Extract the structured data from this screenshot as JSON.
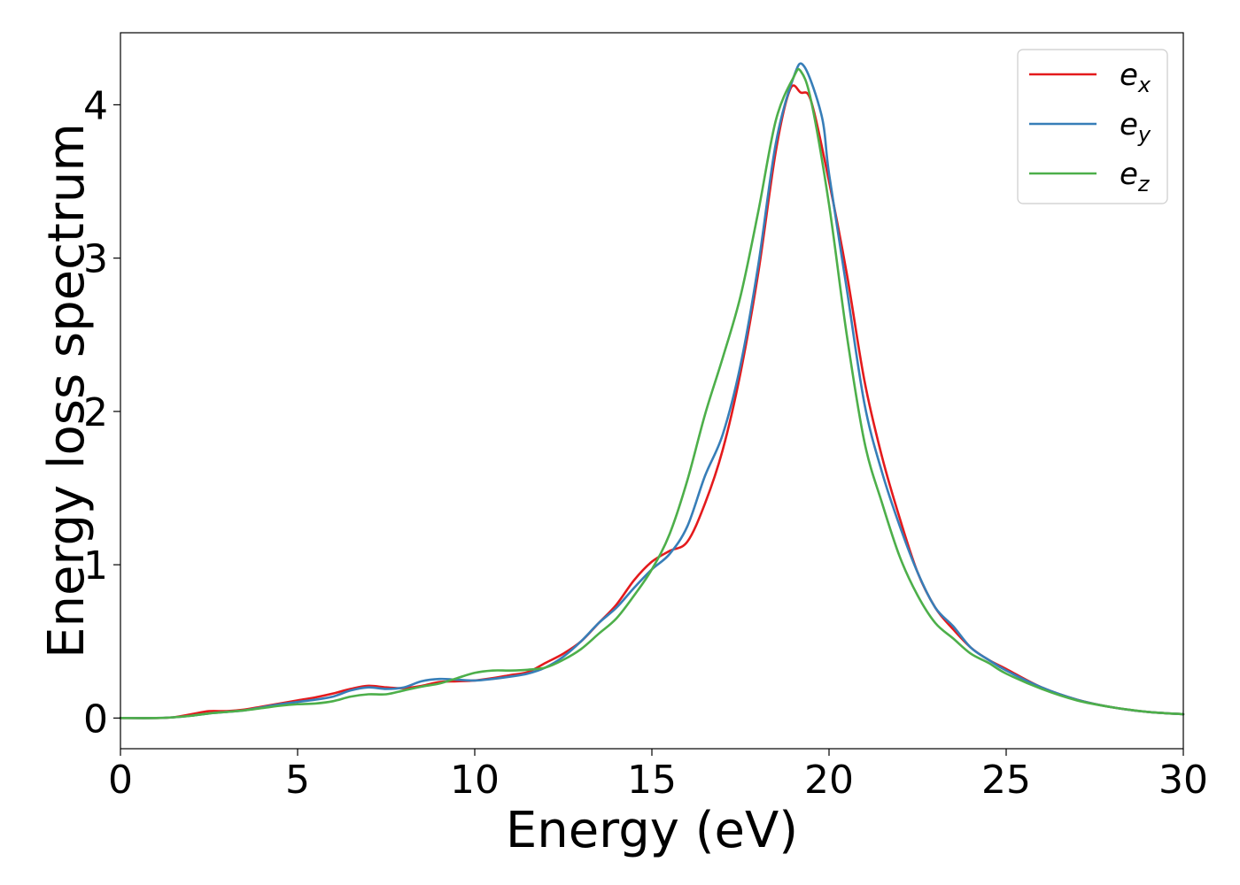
{
  "chart_data": {
    "type": "line",
    "title": "",
    "xlabel": "Energy (eV)",
    "ylabel": "Energy loss spectrum",
    "xlim": [
      0,
      30
    ],
    "ylim": [
      -0.2,
      4.47
    ],
    "x_ticks": [
      "0",
      "5",
      "10",
      "15",
      "20",
      "25",
      "30"
    ],
    "y_ticks": [
      "0",
      "1",
      "2",
      "3",
      "4"
    ],
    "grid": false,
    "legend_position": "top-right",
    "series": [
      {
        "name": "ex",
        "legend_base": "e",
        "legend_sub": "x",
        "color": "#e41a1c",
        "points": [
          [
            0,
            0
          ],
          [
            1,
            0
          ],
          [
            1.5,
            0.005
          ],
          [
            2,
            0.025
          ],
          [
            2.5,
            0.045
          ],
          [
            3,
            0.045
          ],
          [
            3.5,
            0.055
          ],
          [
            4,
            0.075
          ],
          [
            4.5,
            0.095
          ],
          [
            5,
            0.115
          ],
          [
            5.5,
            0.135
          ],
          [
            6,
            0.16
          ],
          [
            6.5,
            0.19
          ],
          [
            7,
            0.21
          ],
          [
            7.5,
            0.2
          ],
          [
            8,
            0.195
          ],
          [
            8.5,
            0.21
          ],
          [
            9,
            0.235
          ],
          [
            9.5,
            0.24
          ],
          [
            10,
            0.245
          ],
          [
            10.5,
            0.26
          ],
          [
            11,
            0.28
          ],
          [
            11.5,
            0.3
          ],
          [
            12,
            0.36
          ],
          [
            12.5,
            0.42
          ],
          [
            13,
            0.5
          ],
          [
            13.5,
            0.62
          ],
          [
            14,
            0.74
          ],
          [
            14.5,
            0.9
          ],
          [
            15,
            1.02
          ],
          [
            15.5,
            1.09
          ],
          [
            16,
            1.15
          ],
          [
            16.5,
            1.4
          ],
          [
            17,
            1.75
          ],
          [
            17.5,
            2.25
          ],
          [
            18,
            2.9
          ],
          [
            18.5,
            3.7
          ],
          [
            18.9,
            4.1
          ],
          [
            19.2,
            4.08
          ],
          [
            19.5,
            4.02
          ],
          [
            20,
            3.5
          ],
          [
            20.5,
            2.9
          ],
          [
            21,
            2.2
          ],
          [
            21.5,
            1.7
          ],
          [
            22,
            1.3
          ],
          [
            22.5,
            0.95
          ],
          [
            23,
            0.72
          ],
          [
            23.5,
            0.58
          ],
          [
            24,
            0.46
          ],
          [
            24.5,
            0.38
          ],
          [
            25,
            0.32
          ],
          [
            26,
            0.2
          ],
          [
            27,
            0.12
          ],
          [
            28,
            0.07
          ],
          [
            29,
            0.04
          ],
          [
            30,
            0.025
          ]
        ]
      },
      {
        "name": "ey",
        "legend_base": "e",
        "legend_sub": "y",
        "color": "#377eb8",
        "points": [
          [
            0,
            0
          ],
          [
            1,
            0
          ],
          [
            1.5,
            0.005
          ],
          [
            2,
            0.015
          ],
          [
            2.5,
            0.03
          ],
          [
            3,
            0.04
          ],
          [
            3.5,
            0.05
          ],
          [
            4,
            0.07
          ],
          [
            4.5,
            0.09
          ],
          [
            5,
            0.105
          ],
          [
            5.5,
            0.12
          ],
          [
            6,
            0.14
          ],
          [
            6.5,
            0.18
          ],
          [
            7,
            0.2
          ],
          [
            7.5,
            0.19
          ],
          [
            8,
            0.2
          ],
          [
            8.5,
            0.24
          ],
          [
            9,
            0.255
          ],
          [
            9.5,
            0.25
          ],
          [
            10,
            0.245
          ],
          [
            10.5,
            0.255
          ],
          [
            11,
            0.27
          ],
          [
            11.5,
            0.29
          ],
          [
            12,
            0.33
          ],
          [
            12.5,
            0.4
          ],
          [
            13,
            0.5
          ],
          [
            13.5,
            0.62
          ],
          [
            14,
            0.72
          ],
          [
            14.5,
            0.85
          ],
          [
            15,
            0.97
          ],
          [
            15.5,
            1.07
          ],
          [
            16,
            1.25
          ],
          [
            16.5,
            1.58
          ],
          [
            17,
            1.85
          ],
          [
            17.5,
            2.3
          ],
          [
            18,
            2.95
          ],
          [
            18.5,
            3.75
          ],
          [
            19,
            4.18
          ],
          [
            19.3,
            4.25
          ],
          [
            19.8,
            3.92
          ],
          [
            20,
            3.55
          ],
          [
            20.5,
            2.8
          ],
          [
            21,
            2.05
          ],
          [
            21.5,
            1.6
          ],
          [
            22,
            1.25
          ],
          [
            22.5,
            0.95
          ],
          [
            23,
            0.72
          ],
          [
            23.5,
            0.6
          ],
          [
            24,
            0.46
          ],
          [
            24.5,
            0.38
          ],
          [
            25,
            0.31
          ],
          [
            26,
            0.2
          ],
          [
            27,
            0.12
          ],
          [
            28,
            0.07
          ],
          [
            29,
            0.04
          ],
          [
            30,
            0.025
          ]
        ]
      },
      {
        "name": "ez",
        "legend_base": "e",
        "legend_sub": "z",
        "color": "#4daf4a",
        "points": [
          [
            0,
            0
          ],
          [
            1,
            0
          ],
          [
            1.5,
            0.005
          ],
          [
            2,
            0.015
          ],
          [
            2.5,
            0.03
          ],
          [
            3,
            0.04
          ],
          [
            3.5,
            0.05
          ],
          [
            4,
            0.065
          ],
          [
            4.5,
            0.08
          ],
          [
            5,
            0.09
          ],
          [
            5.5,
            0.095
          ],
          [
            6,
            0.11
          ],
          [
            6.5,
            0.14
          ],
          [
            7,
            0.155
          ],
          [
            7.5,
            0.155
          ],
          [
            8,
            0.18
          ],
          [
            8.5,
            0.205
          ],
          [
            9,
            0.225
          ],
          [
            9.5,
            0.26
          ],
          [
            10,
            0.295
          ],
          [
            10.5,
            0.31
          ],
          [
            11,
            0.31
          ],
          [
            11.5,
            0.315
          ],
          [
            12,
            0.33
          ],
          [
            12.5,
            0.38
          ],
          [
            13,
            0.45
          ],
          [
            13.5,
            0.55
          ],
          [
            14,
            0.65
          ],
          [
            14.5,
            0.8
          ],
          [
            15,
            0.97
          ],
          [
            15.5,
            1.2
          ],
          [
            16,
            1.55
          ],
          [
            16.5,
            1.98
          ],
          [
            17,
            2.35
          ],
          [
            17.5,
            2.75
          ],
          [
            18,
            3.3
          ],
          [
            18.5,
            3.9
          ],
          [
            19,
            4.18
          ],
          [
            19.2,
            4.22
          ],
          [
            19.5,
            4.02
          ],
          [
            20,
            3.35
          ],
          [
            20.5,
            2.5
          ],
          [
            21,
            1.8
          ],
          [
            21.5,
            1.4
          ],
          [
            22,
            1.05
          ],
          [
            22.5,
            0.8
          ],
          [
            23,
            0.62
          ],
          [
            23.5,
            0.52
          ],
          [
            24,
            0.42
          ],
          [
            24.5,
            0.36
          ],
          [
            25,
            0.29
          ],
          [
            26,
            0.19
          ],
          [
            27,
            0.115
          ],
          [
            28,
            0.07
          ],
          [
            29,
            0.04
          ],
          [
            30,
            0.025
          ]
        ]
      }
    ]
  }
}
